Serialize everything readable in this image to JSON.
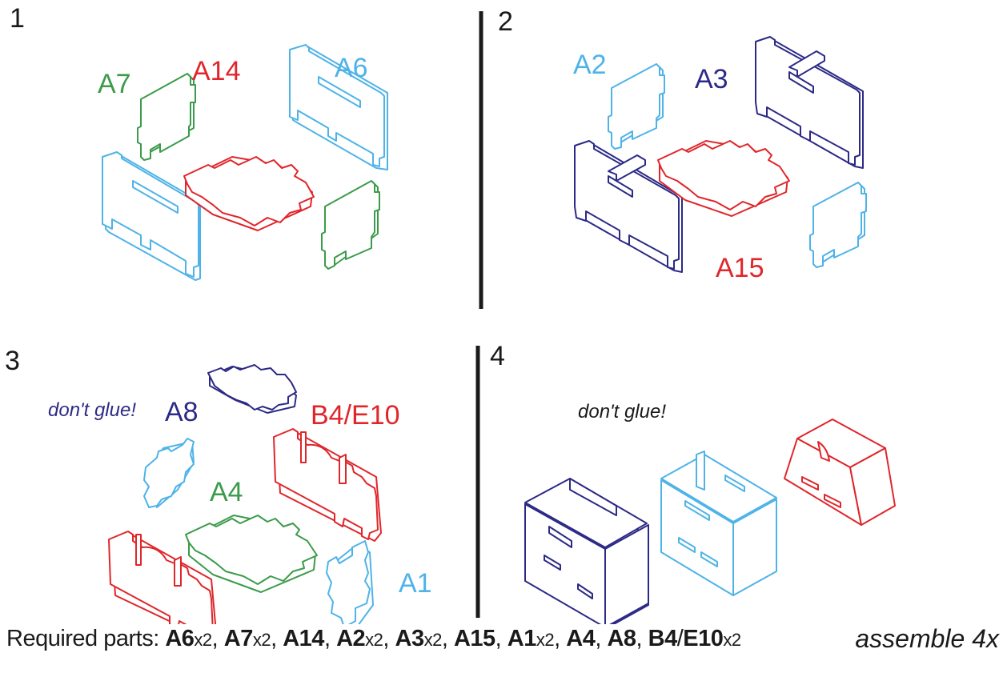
{
  "steps": [
    {
      "number": "1",
      "labels": {
        "a7": "A7",
        "a14": "A14",
        "a6": "A6"
      }
    },
    {
      "number": "2",
      "labels": {
        "a2": "A2",
        "a3": "A3",
        "a15": "A15"
      }
    },
    {
      "number": "3",
      "note": "don't glue!",
      "labels": {
        "a8": "A8",
        "b4e10": "B4/E10",
        "a4": "A4",
        "a1": "A1"
      }
    },
    {
      "number": "4",
      "note": "don't glue!"
    }
  ],
  "colors": {
    "green": "#3b9b4a",
    "red": "#e0262b",
    "blue": "#4fb3e8",
    "navy": "#2c2a86"
  },
  "footer": {
    "prefix": "Required parts: ",
    "parts": [
      {
        "name": "A6",
        "qty": "x2",
        "sep": ", "
      },
      {
        "name": "A7",
        "qty": "x2",
        "sep": ", "
      },
      {
        "name": "A14",
        "qty": "",
        "sep": ",  "
      },
      {
        "name": "A2",
        "qty": "x2",
        "sep": ", "
      },
      {
        "name": "A3",
        "qty": "x2",
        "sep": ", "
      },
      {
        "name": "A15",
        "qty": "",
        "sep": ", "
      },
      {
        "name": "A1",
        "qty": "x2",
        "sep": ", "
      },
      {
        "name": "A4",
        "qty": "",
        "sep": ", "
      },
      {
        "name": "A8",
        "qty": "",
        "sep": ", "
      },
      {
        "name": "B4",
        "qty": "",
        "sep": "/"
      },
      {
        "name": "E10",
        "qty": "x2",
        "sep": ""
      }
    ],
    "assemble": "assemble 4x"
  }
}
